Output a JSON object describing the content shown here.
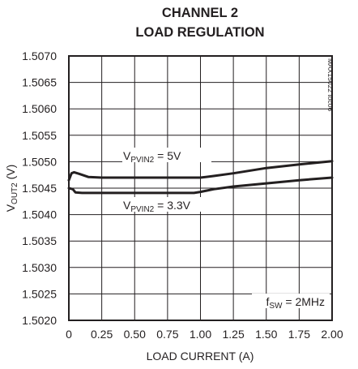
{
  "chart_data": {
    "type": "line",
    "title": [
      "CHANNEL 2",
      "LOAD REGULATION"
    ],
    "xlabel": "LOAD CURRENT (A)",
    "ylabel": {
      "main": "V",
      "sub": "OUT2",
      "suffix": " (V)"
    },
    "xlim": [
      0,
      2.0
    ],
    "ylim": [
      1.502,
      1.507
    ],
    "x_ticks": [
      0,
      0.25,
      0.5,
      0.75,
      1.0,
      1.25,
      1.5,
      1.75,
      2.0
    ],
    "x_tick_labels": [
      "0",
      "0.25",
      "0.50",
      "0.75",
      "1.00",
      "1.25",
      "1.50",
      "1.75",
      "2.00"
    ],
    "y_ticks": [
      1.502,
      1.5025,
      1.503,
      1.5035,
      1.504,
      1.5045,
      1.505,
      1.5055,
      1.506,
      1.5065,
      1.507
    ],
    "y_tick_labels": [
      "1.5020",
      "1.5025",
      "1.5030",
      "1.5035",
      "1.5040",
      "1.5045",
      "1.5050",
      "1.5055",
      "1.5060",
      "1.5065",
      "1.5070"
    ],
    "grid": true,
    "series": [
      {
        "label": {
          "main": "V",
          "sub": "PVIN2",
          "suffix": " = 5V"
        },
        "x": [
          0,
          0.02,
          0.04,
          0.08,
          0.15,
          0.25,
          0.5,
          0.75,
          1.0,
          1.1,
          1.25,
          1.5,
          1.75,
          2.0
        ],
        "y": [
          1.50465,
          1.50478,
          1.5048,
          1.50477,
          1.50471,
          1.5047,
          1.5047,
          1.5047,
          1.5047,
          1.50473,
          1.50478,
          1.50488,
          1.50495,
          1.50501
        ]
      },
      {
        "label": {
          "main": "V",
          "sub": "PVIN2",
          "suffix": " = 3.3V"
        },
        "x": [
          0,
          0.03,
          0.05,
          0.1,
          0.25,
          0.5,
          0.75,
          0.95,
          1.0,
          1.1,
          1.25,
          1.5,
          1.75,
          2.0
        ],
        "y": [
          1.5045,
          1.50448,
          1.50442,
          1.50441,
          1.50441,
          1.50441,
          1.50441,
          1.50441,
          1.50443,
          1.50448,
          1.50453,
          1.50459,
          1.50465,
          1.5047
        ]
      }
    ],
    "annotation": {
      "main": "f",
      "sub": "SW",
      "suffix": " = 2MHz"
    },
    "part_code": "MAX15022 toc06"
  }
}
